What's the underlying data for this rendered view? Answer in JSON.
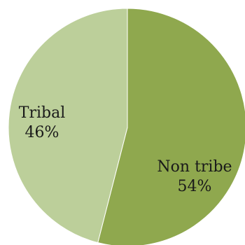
{
  "chart_data": {
    "type": "pie",
    "title": "",
    "slices": [
      {
        "label": "Non tribe",
        "percent_label": "54%",
        "value": 54,
        "color": "#8fa84e"
      },
      {
        "label": "Tribal",
        "percent_label": "46%",
        "value": 46,
        "color": "#bccf9a"
      }
    ],
    "start_angle_deg": 0,
    "direction": "clockwise",
    "legend": "none",
    "data_labels": "inside"
  }
}
